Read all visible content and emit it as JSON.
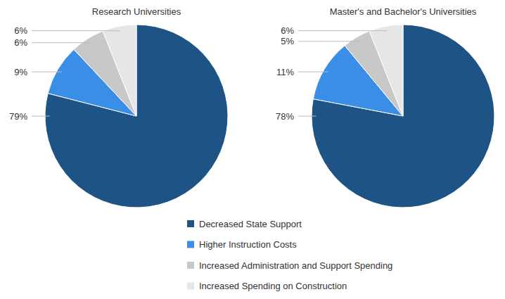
{
  "chart_data": {
    "type": "pie",
    "categories": [
      "Decreased State Support",
      "Higher Instruction Costs",
      "Increased Administration and Support Spending",
      "Increased Spending on Construction"
    ],
    "colors": [
      "#1d5485",
      "#3a8ee6",
      "#c8c8c8",
      "#e6e6e6"
    ],
    "series": [
      {
        "name": "Research Universities",
        "values": [
          79,
          9,
          6,
          6
        ],
        "value_labels": [
          "79%",
          "9%",
          "6%",
          "6%"
        ]
      },
      {
        "name": "Master's and Bachelor's Universities",
        "values": [
          78,
          11,
          5,
          6
        ],
        "value_labels": [
          "78%",
          "11%",
          "5%",
          "6%"
        ]
      }
    ],
    "data_labels": true,
    "legend": "bottom"
  }
}
